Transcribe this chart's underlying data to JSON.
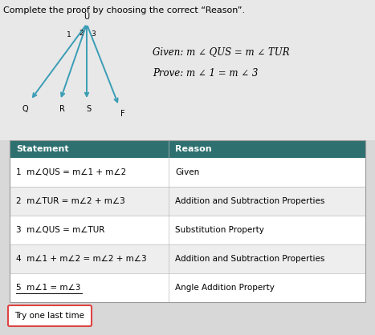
{
  "title": "Complete the proof by choosing the correct “Reason”.",
  "given": "Given: m ∠ QUS = m ∠ TUR",
  "prove": "Prove: m ∠ 1 = m ∠ 3",
  "header_bg": "#2e7070",
  "header_text_color": "#ffffff",
  "table_border": "#bbbbbb",
  "statements": [
    "1  m∠QUS = m∠1 + m∠2",
    "2  m∠TUR = m∠2 + m∠3",
    "3  m∠QUS = m∠TUR",
    "4  m∠1 + m∠2 = m∠2 + m∠3",
    "5  m∠1 = m∠3"
  ],
  "reasons": [
    "Given",
    "Addition and Subtraction Properties",
    "Substitution Property",
    "Addition and Subtraction Properties",
    "Angle Addition Property"
  ],
  "button_text": "Try one last time",
  "button_bg": "#ffffff",
  "button_border": "#dd4444",
  "bg_color": "#d8d8d8",
  "upper_bg": "#e8e8e8",
  "table_bg": "#f0f0f0",
  "diagram_color": "#3a9db5",
  "row_colors": [
    "#ffffff",
    "#eeeeee",
    "#ffffff",
    "#eeeeee",
    "#ffffff"
  ]
}
